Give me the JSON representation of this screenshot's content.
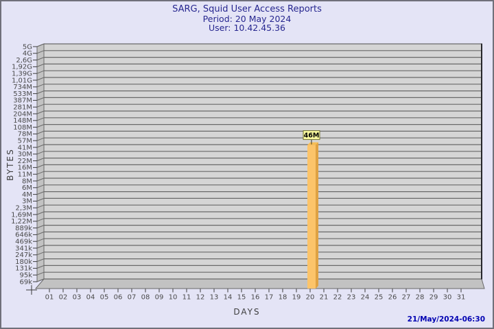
{
  "header": {
    "title": "SARG, Squid User Access Reports",
    "period": "Period: 20 May 2024",
    "user": "User: 10.42.45.36"
  },
  "footer": {
    "generated": "21/May/2024-06:30"
  },
  "chart_data": {
    "type": "bar",
    "title": "SARG, Squid User Access Reports",
    "subtitle": [
      "Period: 20 May 2024",
      "User: 10.42.45.36"
    ],
    "xlabel": "DAYS",
    "ylabel": "BYTES",
    "y_scale": "log",
    "grid": "horizontal",
    "legend": "none",
    "x_tick_labels": [
      "01",
      "02",
      "03",
      "04",
      "05",
      "06",
      "07",
      "08",
      "09",
      "10",
      "11",
      "12",
      "13",
      "14",
      "15",
      "16",
      "17",
      "18",
      "19",
      "20",
      "21",
      "22",
      "23",
      "24",
      "25",
      "26",
      "27",
      "28",
      "29",
      "30",
      "31"
    ],
    "y_ticks": [
      {
        "label": "5G",
        "bytes": 5000000000
      },
      {
        "label": "4G",
        "bytes": 4000000000
      },
      {
        "label": "2,6G",
        "bytes": 2600000000
      },
      {
        "label": "1,92G",
        "bytes": 1920000000
      },
      {
        "label": "1,39G",
        "bytes": 1390000000
      },
      {
        "label": "1,01G",
        "bytes": 1010000000
      },
      {
        "label": "734M",
        "bytes": 734000000
      },
      {
        "label": "533M",
        "bytes": 533000000
      },
      {
        "label": "387M",
        "bytes": 387000000
      },
      {
        "label": "281M",
        "bytes": 281000000
      },
      {
        "label": "204M",
        "bytes": 204000000
      },
      {
        "label": "148M",
        "bytes": 148000000
      },
      {
        "label": "108M",
        "bytes": 108000000
      },
      {
        "label": "78M",
        "bytes": 78000000
      },
      {
        "label": "57M",
        "bytes": 57000000
      },
      {
        "label": "41M",
        "bytes": 41000000
      },
      {
        "label": "30M",
        "bytes": 30000000
      },
      {
        "label": "22M",
        "bytes": 22000000
      },
      {
        "label": "16M",
        "bytes": 16000000
      },
      {
        "label": "11M",
        "bytes": 11000000
      },
      {
        "label": "8M",
        "bytes": 8000000
      },
      {
        "label": "6M",
        "bytes": 6000000
      },
      {
        "label": "4M",
        "bytes": 4000000
      },
      {
        "label": "3M",
        "bytes": 3000000
      },
      {
        "label": "2,3M",
        "bytes": 2300000
      },
      {
        "label": "1,69M",
        "bytes": 1690000
      },
      {
        "label": "1,22M",
        "bytes": 1220000
      },
      {
        "label": "889k",
        "bytes": 889000
      },
      {
        "label": "646k",
        "bytes": 646000
      },
      {
        "label": "469k",
        "bytes": 469000
      },
      {
        "label": "341k",
        "bytes": 341000
      },
      {
        "label": "247k",
        "bytes": 247000
      },
      {
        "label": "180k",
        "bytes": 180000
      },
      {
        "label": "131k",
        "bytes": 131000
      },
      {
        "label": "95k",
        "bytes": 95000
      },
      {
        "label": "69k",
        "bytes": 69000
      }
    ],
    "series": [
      {
        "name": "daily-bytes",
        "points": [
          {
            "day": "20",
            "bytes": 46000000,
            "label": "46M"
          }
        ]
      }
    ],
    "colors": {
      "page_bg": "#e4e4f6",
      "plot_bg": "#d5d5d5",
      "wall": "#c2c2c2",
      "grid": "#696969",
      "axis_text": "#4a4a4a",
      "title_text": "#26268f",
      "timestamp_text": "#0202b2",
      "bar_front": "#fcc46a",
      "bar_side": "#dfa243",
      "bar_top": "#f6bd55",
      "annotation_bg": "#f8f89e",
      "annotation_border": "#6f6f33"
    }
  }
}
